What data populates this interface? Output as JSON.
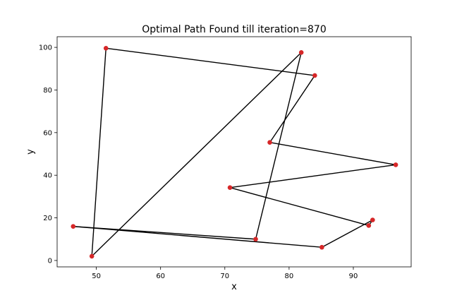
{
  "chart_data": {
    "type": "line",
    "title": "Optimal Path Found till iteration=870",
    "xlabel": "x",
    "ylabel": "y",
    "xlim": [
      43.9,
      99.0
    ],
    "ylim": [
      -3,
      105
    ],
    "xticks": [
      50,
      60,
      70,
      80,
      90
    ],
    "yticks": [
      0,
      20,
      40,
      60,
      80,
      100
    ],
    "grid": false,
    "marker_color": "#d62728",
    "line_color": "#000000",
    "path": [
      {
        "x": 51.5,
        "y": 99.6
      },
      {
        "x": 84.0,
        "y": 86.8
      },
      {
        "x": 77.0,
        "y": 55.4
      },
      {
        "x": 96.6,
        "y": 44.9
      },
      {
        "x": 70.8,
        "y": 34.2
      },
      {
        "x": 92.4,
        "y": 16.4
      },
      {
        "x": 93.0,
        "y": 19.0
      },
      {
        "x": 85.1,
        "y": 6.2
      },
      {
        "x": 46.4,
        "y": 16.0
      },
      {
        "x": 74.8,
        "y": 10.0
      },
      {
        "x": 81.9,
        "y": 97.6
      },
      {
        "x": 49.3,
        "y": 2.0
      },
      {
        "x": 51.5,
        "y": 99.6
      }
    ]
  }
}
